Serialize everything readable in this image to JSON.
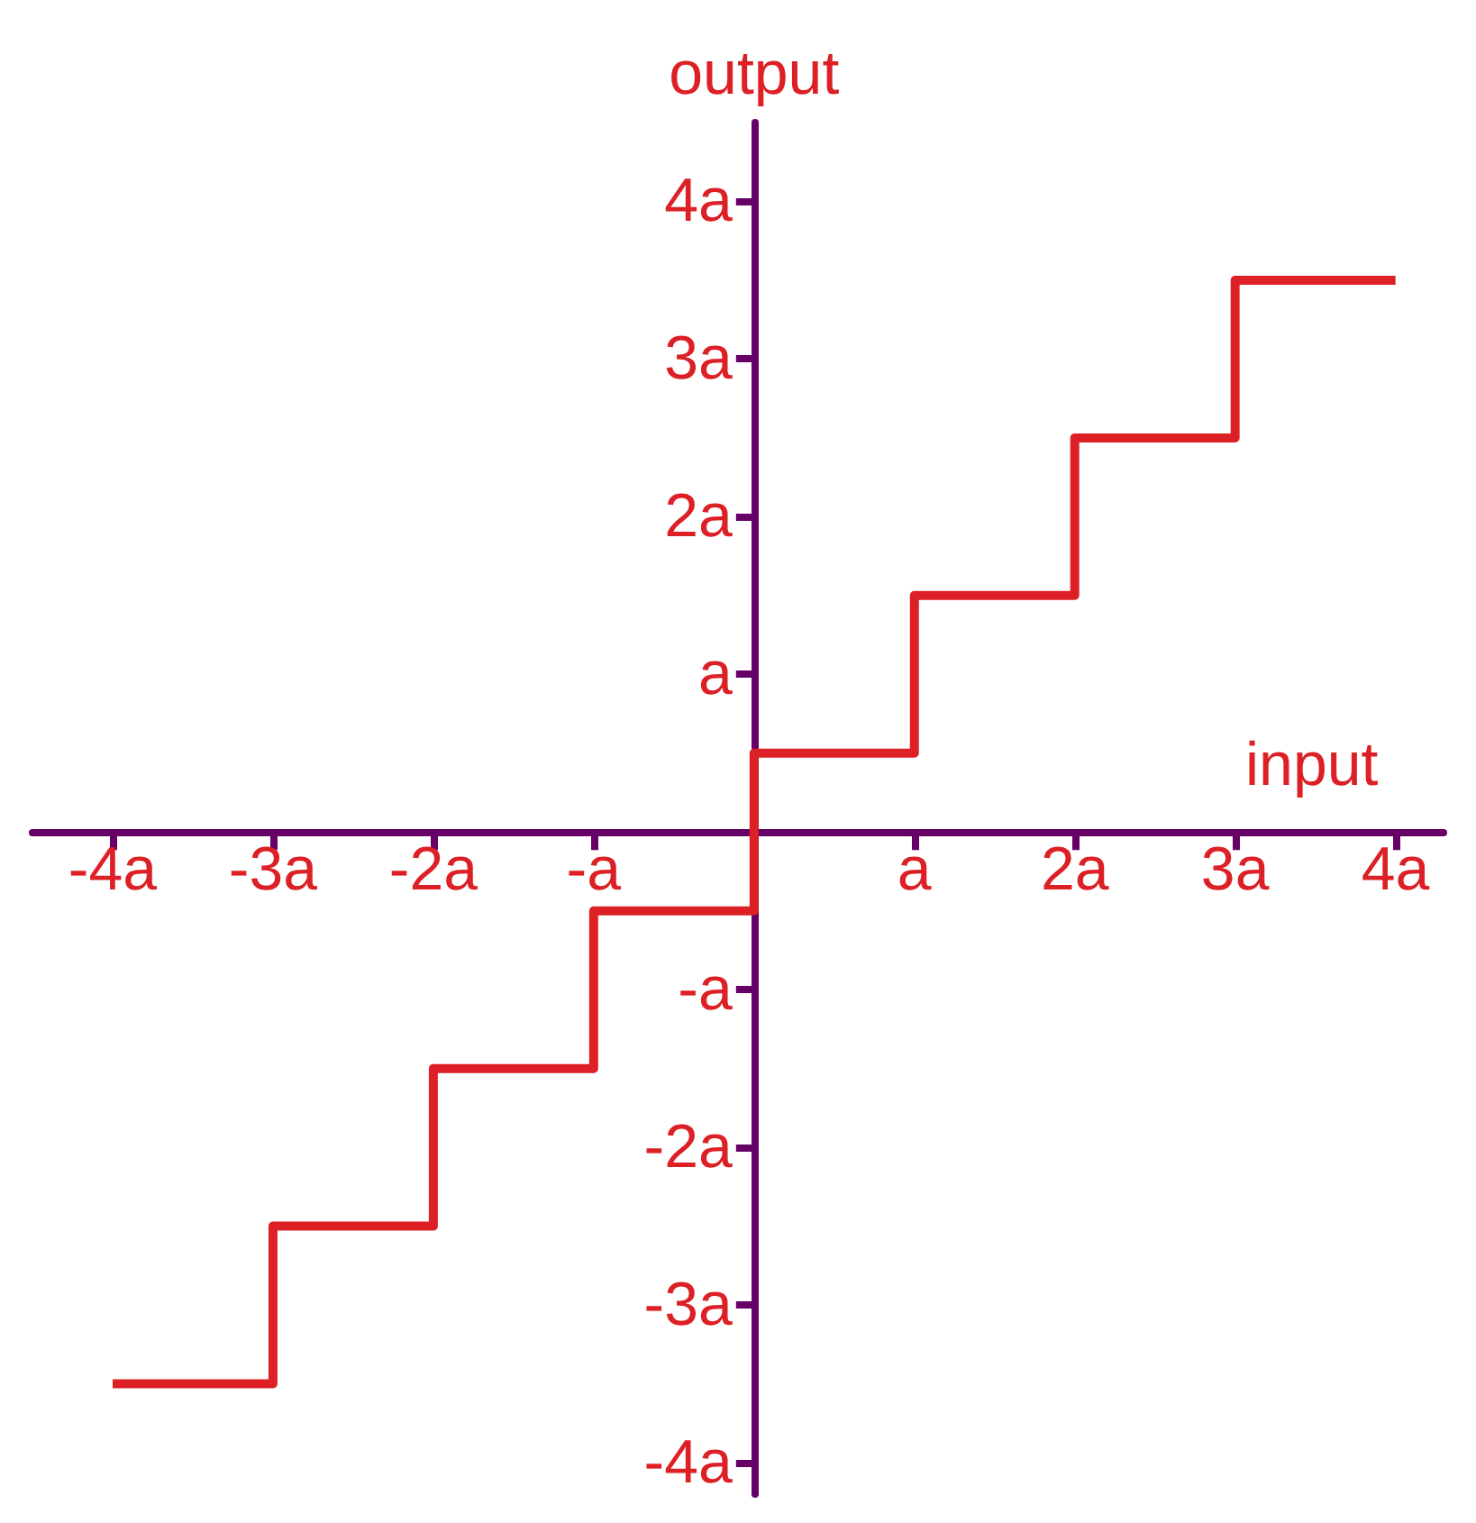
{
  "chart_data": {
    "type": "step",
    "xlabel": "input",
    "ylabel": "output",
    "x": [
      -4,
      -3,
      -2,
      -1,
      0,
      1,
      2,
      3,
      4
    ],
    "series": [
      {
        "color": "#dd2026",
        "values": [
          -3.5,
          -2.5,
          -1.5,
          -0.5,
          0.5,
          1.5,
          2.5,
          3.5,
          3.5
        ]
      }
    ],
    "xlim": [
      -4.5,
      4.3
    ],
    "ylim": [
      -4.2,
      4.5
    ],
    "xticks": [
      {
        "value": -4,
        "label": "-4a"
      },
      {
        "value": -3,
        "label": "-3a"
      },
      {
        "value": -2,
        "label": "-2a"
      },
      {
        "value": -1,
        "label": "-a"
      },
      {
        "value": 1,
        "label": "a"
      },
      {
        "value": 2,
        "label": "2a"
      },
      {
        "value": 3,
        "label": "3a"
      },
      {
        "value": 4,
        "label": "4a"
      }
    ],
    "yticks": [
      {
        "value": -4,
        "label": "-4a"
      },
      {
        "value": -3,
        "label": "-3a"
      },
      {
        "value": -2,
        "label": "-2a"
      },
      {
        "value": -1,
        "label": "-a"
      },
      {
        "value": 1,
        "label": "a"
      },
      {
        "value": 2,
        "label": "2a"
      },
      {
        "value": 3,
        "label": "3a"
      },
      {
        "value": 4,
        "label": "4a"
      }
    ],
    "grid": false,
    "marker": "none",
    "line_style": "solid"
  }
}
